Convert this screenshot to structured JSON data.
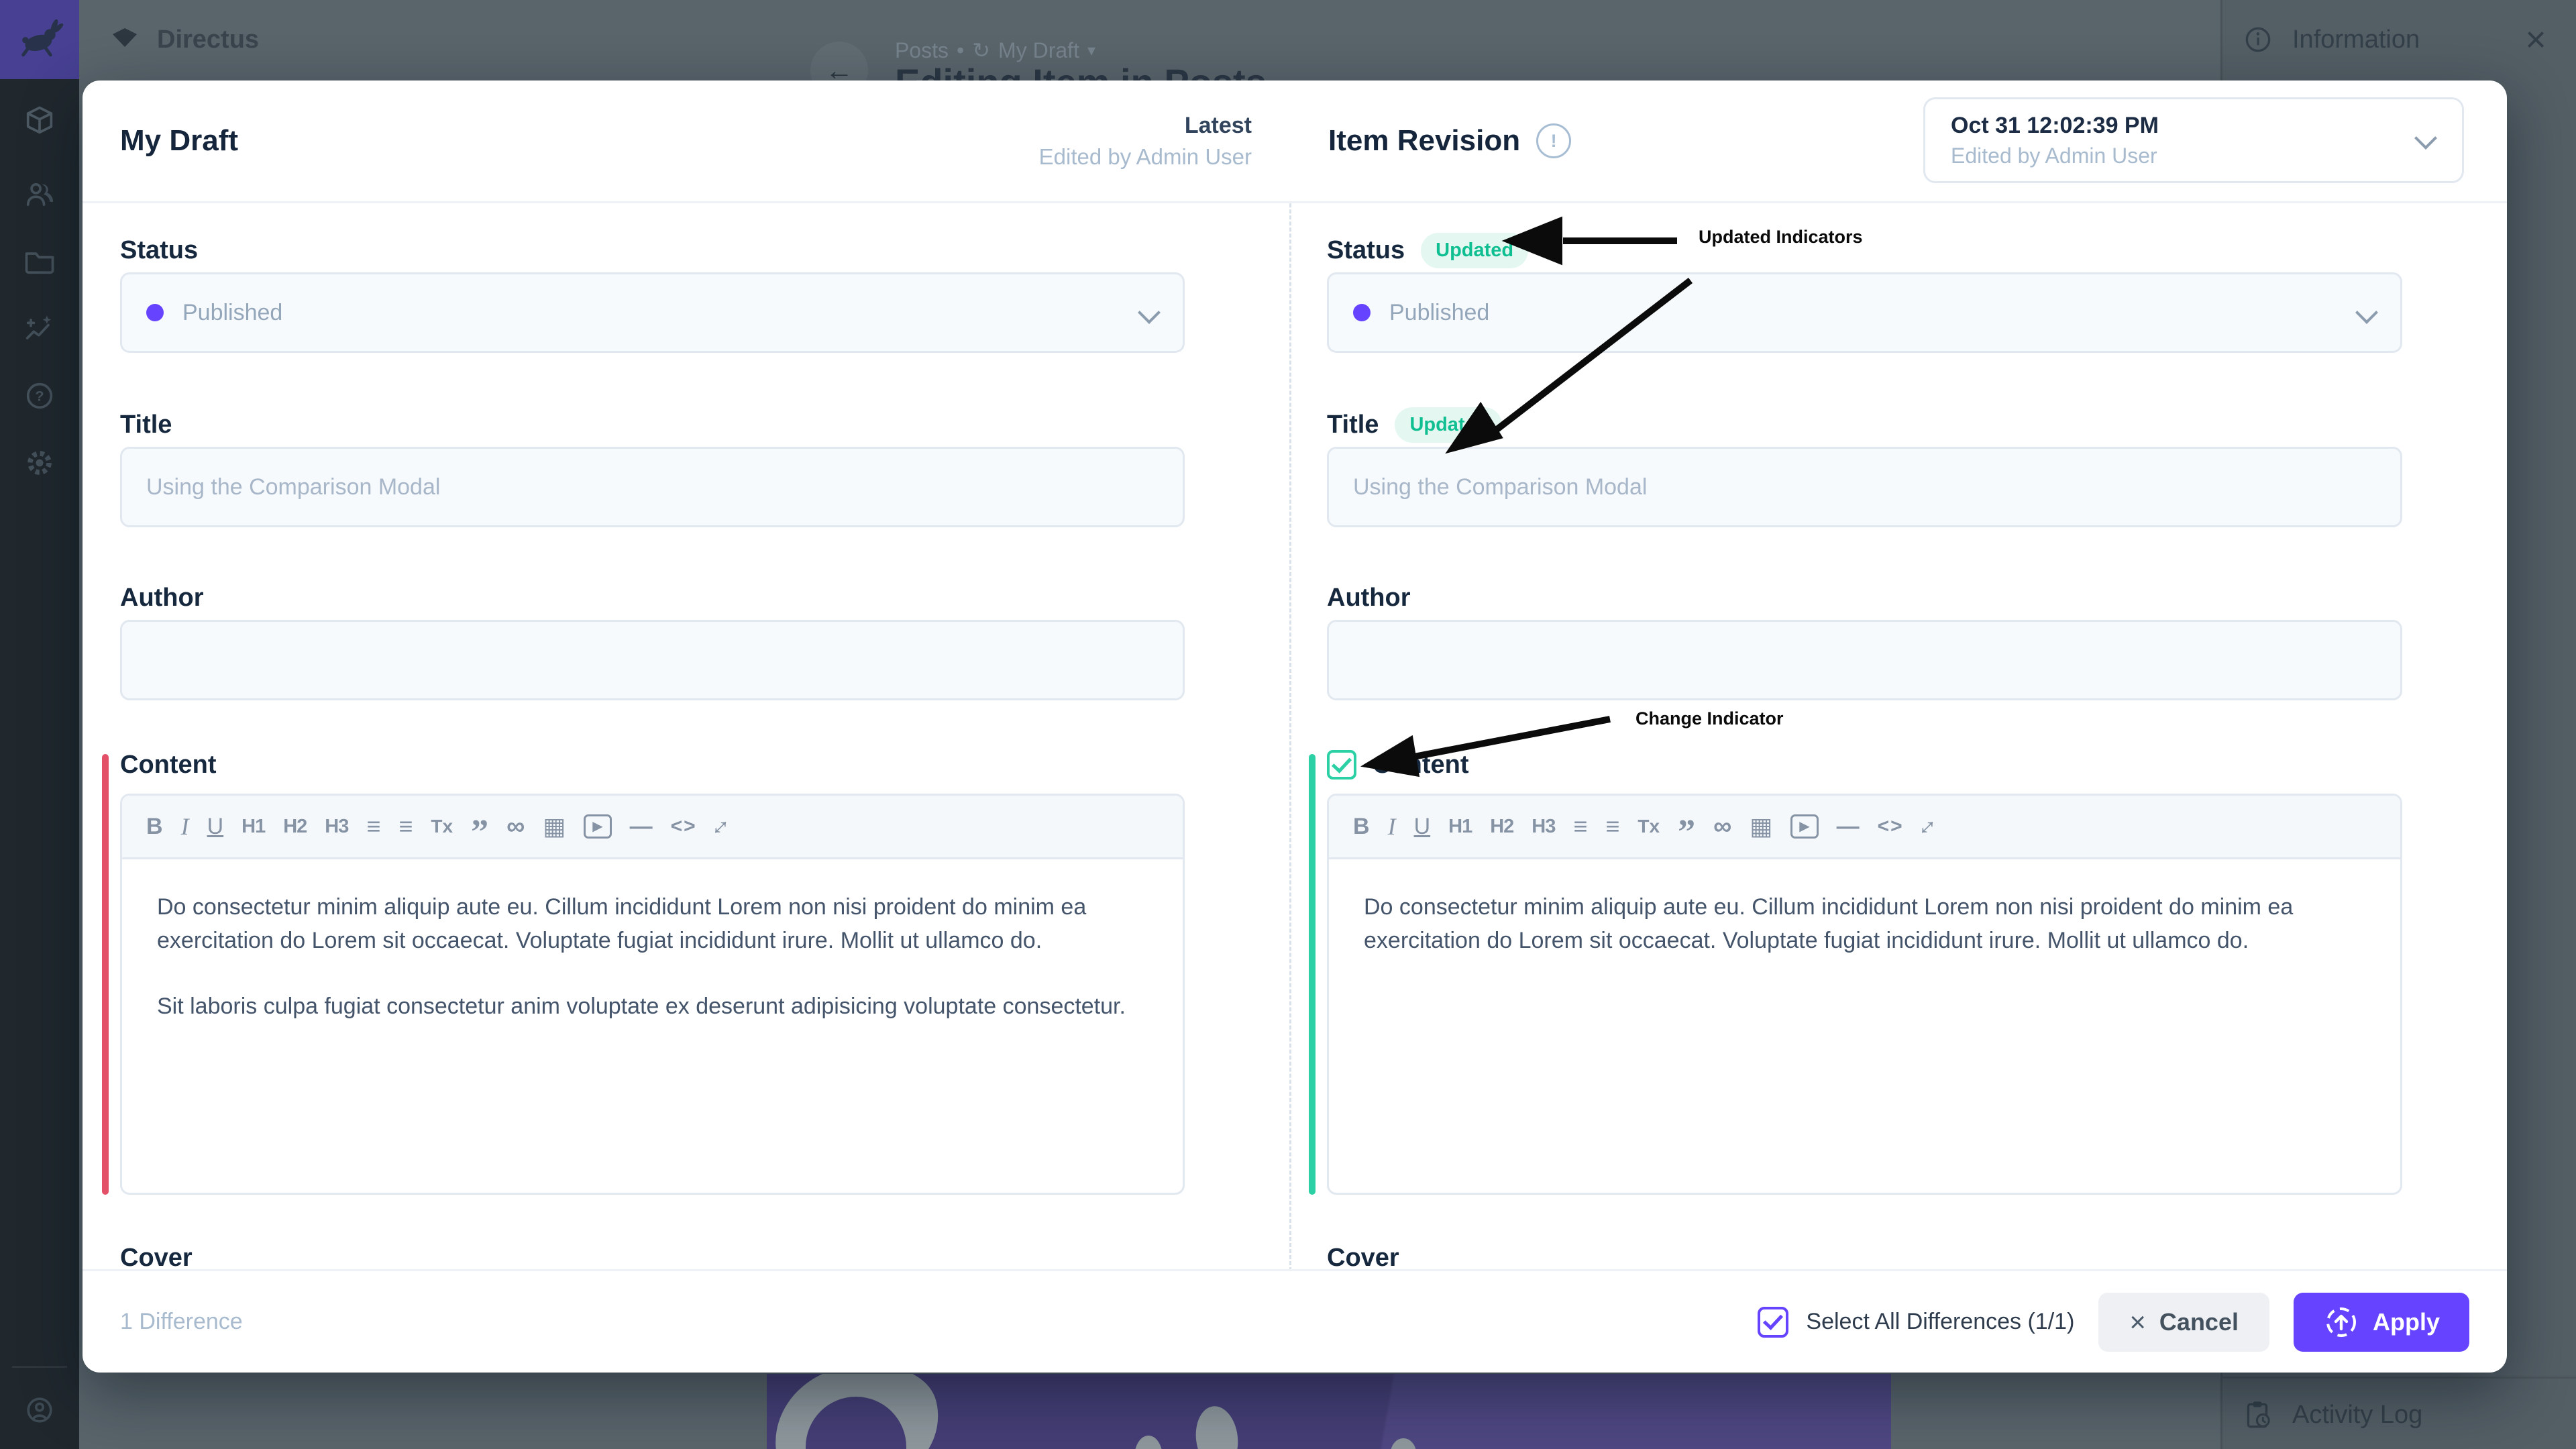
{
  "background": {
    "project_name": "Directus",
    "breadcrumb_collection": "Posts",
    "breadcrumb_separator": "•",
    "breadcrumb_revision_icon": "↻",
    "breadcrumb_item": "My Draft",
    "breadcrumb_caret": "▾",
    "page_title": "Editing Item in Posts",
    "info_panel_title": "Information",
    "close_label": "×",
    "activity_log_label": "Activity Log"
  },
  "modal": {
    "left_title": "My Draft",
    "left_version": "Latest",
    "left_edited_by": "Edited by Admin User",
    "right_title": "Item Revision",
    "alert_glyph": "!",
    "revision_time": "Oct 31 12:02:39 PM",
    "revision_edited_by": "Edited by Admin User",
    "badge_updated": "Updated",
    "fields": {
      "status_label": "Status",
      "status_value": "Published",
      "title_label": "Title",
      "title_value": "Using the Comparison Modal",
      "author_label": "Author",
      "content_label": "Content",
      "cover_label": "Cover"
    },
    "content": {
      "p1": "Do consectetur minim aliquip aute eu. Cillum incididunt Lorem non nisi proident do minim ea exercitation do Lorem sit occaecat. Voluptate fugiat incididunt irure. Mollit ut ullamco do.",
      "p2": "Sit laboris culpa fugiat consectetur anim voluptate ex deserunt adipisicing voluptate consectetur."
    },
    "toolbar_icons": [
      {
        "name": "bold",
        "glyph": "B"
      },
      {
        "name": "italic",
        "glyph": "I"
      },
      {
        "name": "underline",
        "glyph": "U"
      },
      {
        "name": "h1",
        "glyph": "H1"
      },
      {
        "name": "h2",
        "glyph": "H2"
      },
      {
        "name": "h3",
        "glyph": "H3"
      },
      {
        "name": "numbered-list",
        "glyph": "≡"
      },
      {
        "name": "bullet-list",
        "glyph": "≡"
      },
      {
        "name": "remove-format",
        "glyph": "Tx"
      },
      {
        "name": "blockquote",
        "glyph": "”"
      },
      {
        "name": "link",
        "glyph": "∞"
      },
      {
        "name": "image",
        "glyph": "▦"
      },
      {
        "name": "video",
        "glyph": "▶"
      },
      {
        "name": "horizontal-rule",
        "glyph": "—"
      },
      {
        "name": "code",
        "glyph": "<>"
      },
      {
        "name": "fullscreen",
        "glyph": "↕"
      }
    ],
    "annotations": {
      "updated_indicators": "Updated Indicators",
      "change_indicator": "Change Indicator"
    },
    "footer": {
      "differences": "1 Difference",
      "select_all": "Select All Differences (1/1)",
      "cancel": "Cancel",
      "cancel_icon": "×",
      "apply": "Apply"
    }
  },
  "colors": {
    "accent": "#6644FF",
    "success": "#2BD0A4",
    "danger": "#E35169",
    "badge_text": "#10BF91",
    "badge_bg": "#E4F8F1"
  }
}
